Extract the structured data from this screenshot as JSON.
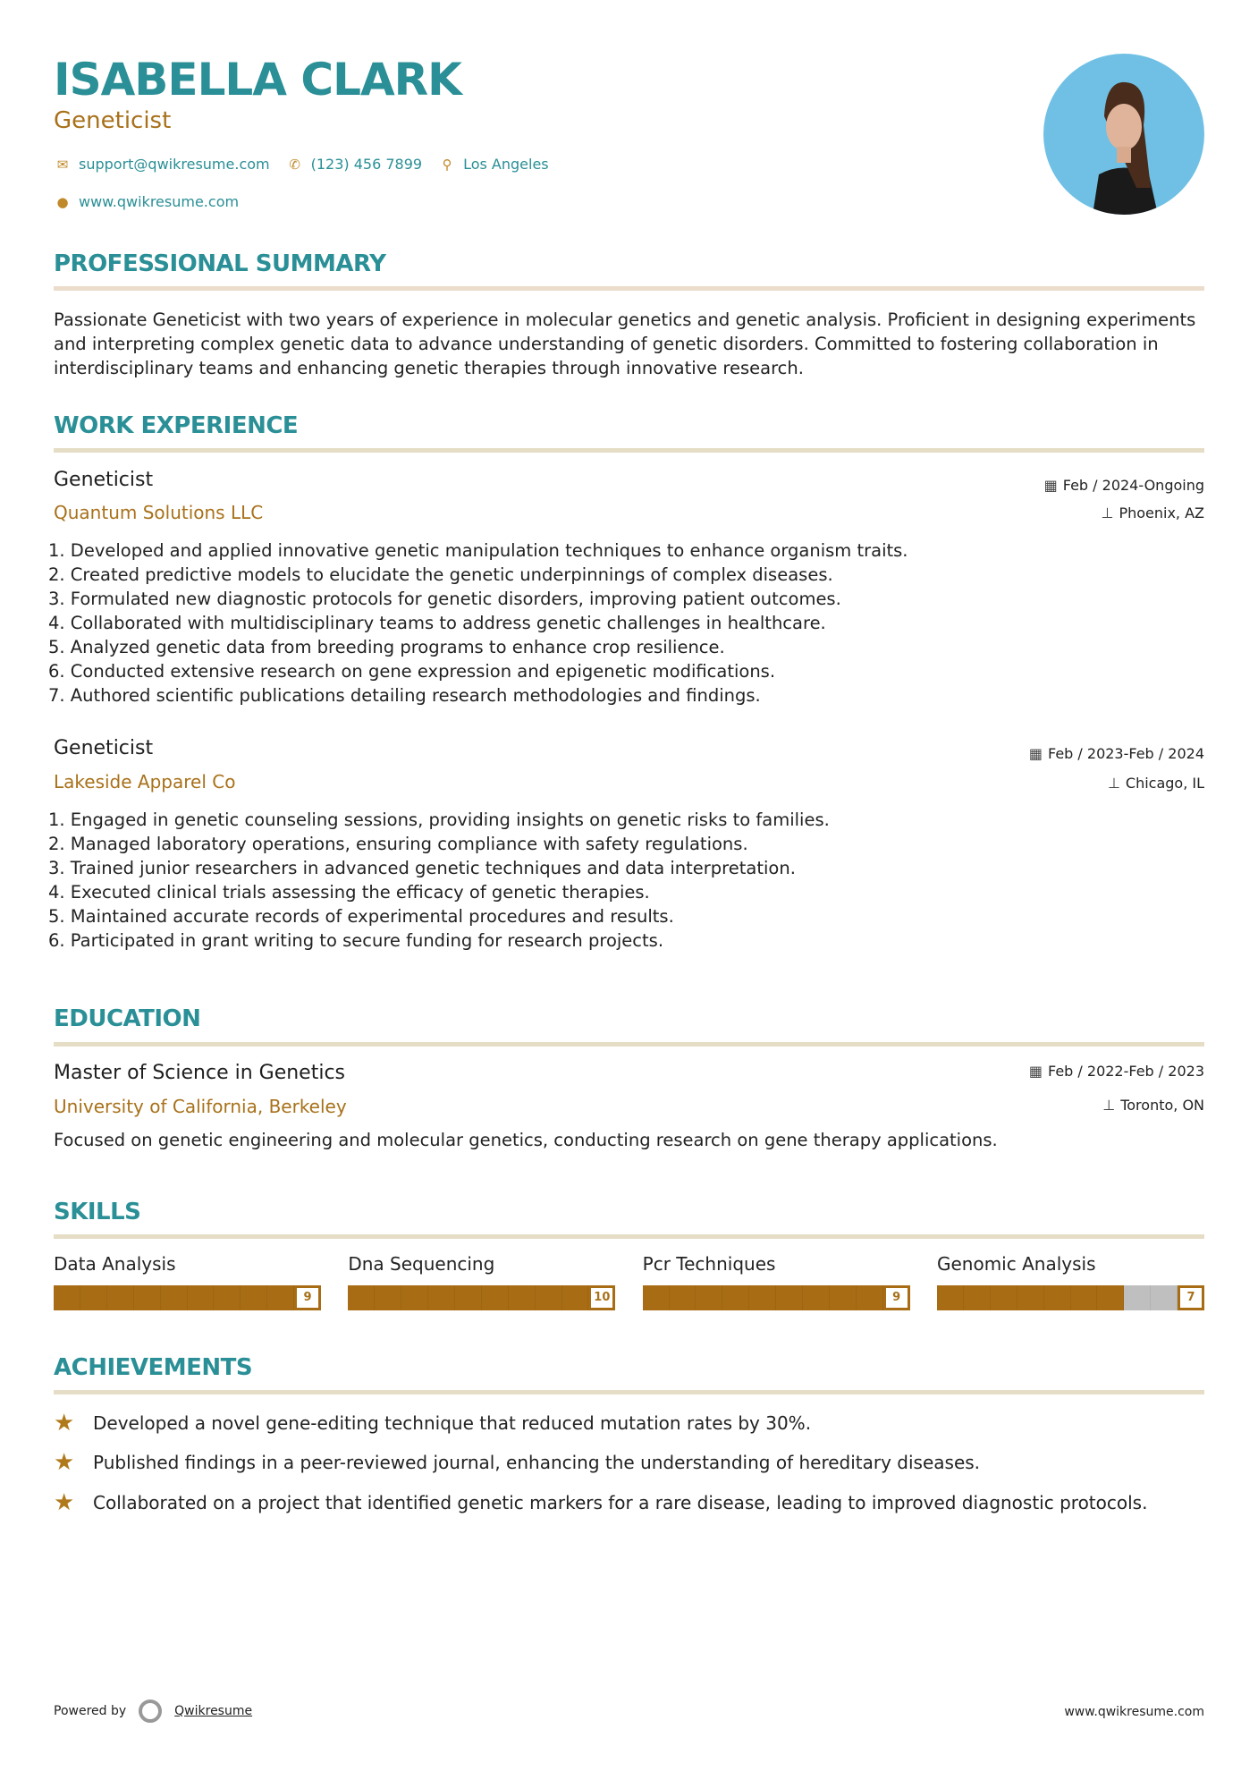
{
  "header": {
    "name": "ISABELLA CLARK",
    "title": "Geneticist",
    "email": "support@qwikresume.com",
    "phone": "(123) 456 7899",
    "location": "Los Angeles",
    "website": "www.qwikresume.com"
  },
  "summary": {
    "heading": "PROFESSIONAL SUMMARY",
    "text": "Passionate Geneticist with two years of experience in molecular genetics and genetic analysis. Proficient in designing experiments and interpreting complex genetic data to advance understanding of genetic disorders. Committed to fostering collaboration in interdisciplinary teams and enhancing genetic therapies through innovative research."
  },
  "experience": {
    "heading": "WORK EXPERIENCE",
    "jobs": [
      {
        "title": "Geneticist",
        "company": "Quantum Solutions LLC",
        "date": "Feb / 2024-Ongoing",
        "location": "Phoenix, AZ",
        "bullets": [
          "1. Developed and applied innovative genetic manipulation techniques to enhance organism traits.",
          "2. Created predictive models to elucidate the genetic underpinnings of complex diseases.",
          "3. Formulated new diagnostic protocols for genetic disorders, improving patient outcomes.",
          "4. Collaborated with multidisciplinary teams to address genetic challenges in healthcare.",
          "5. Analyzed genetic data from breeding programs to enhance crop resilience.",
          "6. Conducted extensive research on gene expression and epigenetic modifications.",
          "7. Authored scientific publications detailing research methodologies and findings."
        ]
      },
      {
        "title": "Geneticist",
        "company": "Lakeside Apparel Co",
        "date": "Feb / 2023-Feb / 2024",
        "location": "Chicago, IL",
        "bullets": [
          "1. Engaged in genetic counseling sessions, providing insights on genetic risks to families.",
          "2. Managed laboratory operations, ensuring compliance with safety regulations.",
          "3. Trained junior researchers in advanced genetic techniques and data interpretation.",
          "4. Executed clinical trials assessing the efficacy of genetic therapies.",
          "5. Maintained accurate records of experimental procedures and results.",
          "6. Participated in grant writing to secure funding for research projects."
        ]
      }
    ]
  },
  "education": {
    "heading": "EDUCATION",
    "degree": "Master of Science in Genetics",
    "school": "University of California, Berkeley",
    "date": "Feb / 2022-Feb / 2023",
    "location": "Toronto, ON",
    "description": "Focused on genetic engineering and molecular genetics, conducting research on gene therapy applications."
  },
  "skills": {
    "heading": "SKILLS",
    "max": 10,
    "items": [
      {
        "name": "Data Analysis",
        "score": "9"
      },
      {
        "name": "Dna Sequencing",
        "score": "10"
      },
      {
        "name": "Pcr Techniques",
        "score": "9"
      },
      {
        "name": "Genomic Analysis",
        "score": "7"
      }
    ]
  },
  "achievements": {
    "heading": "ACHIEVEMENTS",
    "items": [
      "Developed a novel gene-editing technique that reduced mutation rates by 30%.",
      "Published findings in a peer-reviewed journal, enhancing the understanding of hereditary diseases.",
      "Collaborated on a project that identified genetic markers for a rare disease, leading to improved diagnostic protocols."
    ]
  },
  "footer": {
    "powered_by": "Powered by",
    "brand": "Qwikresume",
    "url": "www.qwikresume.com"
  },
  "colors": {
    "accent": "#2a8f96",
    "secondary": "#a8711a",
    "bar_fill": "#a86c14",
    "bar_empty": "#bfbfbf"
  }
}
